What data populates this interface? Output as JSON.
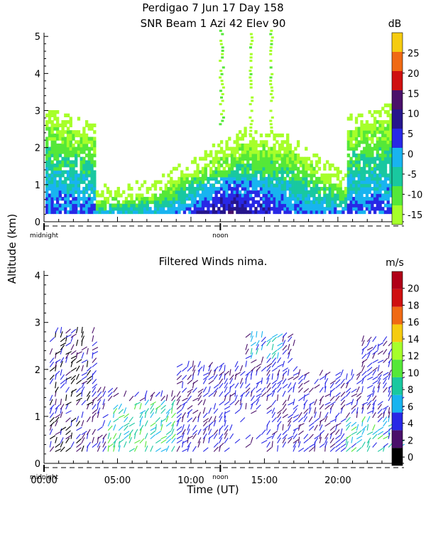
{
  "top_title": {
    "line1": "Perdigao    7 Jun 17 Day 158",
    "line2": "SNR Beam  1 Azi   42 Elev 90"
  },
  "shared_ylabel": "Altitude (km)",
  "chart_data": [
    {
      "type": "heatmap",
      "name_printed": "",
      "title": "Perdigao    7 Jun 17 Day 158 / SNR Beam  1 Azi   42 Elev 90",
      "ylabel": "Altitude (km)",
      "ylim": [
        0,
        5.1
      ],
      "yticks": [
        0,
        1,
        2,
        3,
        4,
        5
      ],
      "xlim_hours": [
        0,
        24.5
      ],
      "x_markers": [
        "midnight",
        "noon"
      ],
      "colorbar": {
        "unit": "dB",
        "ticks": [
          -15,
          -10,
          -5,
          0,
          5,
          10,
          15,
          20,
          25
        ],
        "range": [
          -17.5,
          30
        ],
        "colors": [
          "#a6ff2a",
          "#55e838",
          "#19c8a0",
          "#18b4f0",
          "#2828e6",
          "#26168c",
          "#4a106a",
          "#cf1010",
          "#f06a14",
          "#f6cc10"
        ]
      }
    },
    {
      "type": "scatter",
      "subtype": "wind-barbs",
      "title": "Filtered Winds nima.",
      "xlabel": "Time (UT)",
      "ylabel": "Altitude (km)",
      "ylim": [
        0,
        4.1
      ],
      "yticks": [
        0,
        1,
        2,
        3,
        4
      ],
      "xlim_hours": [
        0,
        24.5
      ],
      "xticks": [
        "00:00",
        "05:00",
        "10:00",
        "15:00",
        "20:00"
      ],
      "x_markers": [
        "midnight",
        "noon"
      ],
      "colorbar": {
        "unit": "m/s",
        "ticks": [
          0,
          2,
          4,
          6,
          8,
          10,
          12,
          14,
          16,
          18,
          20
        ],
        "range": [
          -1,
          22
        ],
        "colors": [
          "#000000",
          "#4a106a",
          "#2828e6",
          "#18b4f0",
          "#19c8a0",
          "#55e838",
          "#a6ff2a",
          "#f6cc10",
          "#f06a14",
          "#cf1010",
          "#b00018"
        ]
      }
    }
  ]
}
